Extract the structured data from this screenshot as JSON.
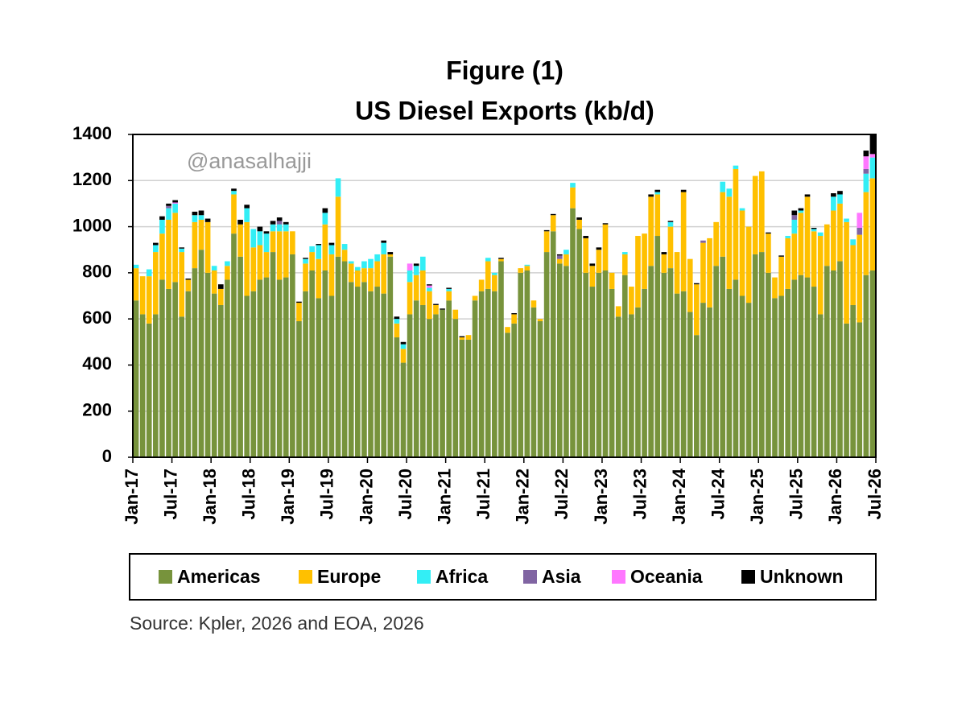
{
  "chart_data": {
    "type": "stacked_bar",
    "title": "Figure (1)",
    "subtitle": "US Diesel Exports (kb/d)",
    "watermark": "@anasalhajji",
    "source": "Source: Kpler, 2026 and EOA, 2026",
    "categories": [
      "Jan-17",
      null,
      null,
      null,
      null,
      null,
      "Jul-17",
      null,
      null,
      null,
      null,
      null,
      "Jan-18",
      null,
      null,
      null,
      null,
      null,
      "Jul-18",
      null,
      null,
      null,
      null,
      null,
      "Jan-19",
      null,
      null,
      null,
      null,
      null,
      "Jul-19",
      null,
      null,
      null,
      null,
      null,
      "Jan-20",
      null,
      null,
      null,
      null,
      null,
      "Jul-20",
      null,
      null,
      null,
      null,
      null,
      "Jan-21",
      null,
      null,
      null,
      null,
      null,
      "Jul-21",
      null,
      null,
      null,
      null,
      null,
      "Jan-22",
      null,
      null,
      null,
      null,
      null,
      "Jul-22",
      null,
      null,
      null,
      null,
      null,
      "Jan-23",
      null,
      null,
      null,
      null,
      null,
      "Jul-23",
      null,
      null,
      null,
      null,
      null,
      "Jan-24",
      null,
      null,
      null,
      null,
      null,
      "Jul-24",
      null,
      null,
      null,
      null,
      null,
      "Jan-25",
      null,
      null,
      null,
      null,
      null,
      "Jul-25",
      null,
      null,
      null,
      null,
      null,
      "Jan-26",
      null,
      null,
      null,
      null,
      null,
      "Jul-26"
    ],
    "series": [
      {
        "name": "Americas",
        "color": "#77933c",
        "values": [
          680,
          620,
          580,
          620,
          770,
          730,
          760,
          610,
          720,
          820,
          900,
          800,
          710,
          660,
          770,
          970,
          870,
          700,
          720,
          770,
          780,
          890,
          770,
          780,
          880,
          590,
          720,
          810,
          690,
          810,
          700,
          870,
          850,
          760,
          740,
          760,
          720,
          740,
          710,
          870,
          520,
          410,
          620,
          680,
          660,
          600,
          620,
          640,
          680,
          600,
          510,
          510,
          680,
          720,
          730,
          720,
          850,
          540,
          580,
          800,
          810,
          650,
          590,
          890,
          980,
          840,
          830,
          1080,
          990,
          800,
          740,
          800,
          810,
          730,
          610,
          790,
          620,
          650,
          730,
          830,
          960,
          800,
          820,
          710,
          720,
          630,
          530,
          670,
          650,
          830,
          870,
          730,
          770,
          700,
          670,
          880,
          890,
          800,
          690,
          700,
          730,
          770,
          790,
          780,
          740,
          620,
          830,
          810,
          850,
          580,
          660,
          585,
          790,
          810,
          null
        ]
      },
      {
        "name": "Europe",
        "color": "#ffc000",
        "values": [
          140,
          165,
          205,
          270,
          200,
          300,
          300,
          280,
          50,
          200,
          130,
          220,
          100,
          70,
          60,
          170,
          140,
          320,
          190,
          150,
          110,
          90,
          210,
          200,
          100,
          80,
          120,
          80,
          170,
          200,
          180,
          260,
          50,
          80,
          70,
          60,
          100,
          110,
          170,
          10,
          60,
          60,
          140,
          110,
          150,
          120,
          40,
          0,
          40,
          40,
          10,
          20,
          20,
          50,
          120,
          70,
          10,
          25,
          40,
          20,
          20,
          30,
          10,
          90,
          70,
          20,
          50,
          90,
          40,
          150,
          90,
          100,
          200,
          70,
          45,
          90,
          120,
          310,
          240,
          300,
          180,
          80,
          180,
          180,
          430,
          230,
          220,
          260,
          300,
          190,
          280,
          400,
          480,
          370,
          330,
          340,
          350,
          170,
          90,
          170,
          220,
          200,
          270,
          350,
          240,
          340,
          180,
          260,
          250,
          440,
          260,
          380,
          360,
          400,
          null
        ]
      },
      {
        "name": "Africa",
        "color": "#33eef5",
        "values": [
          15,
          0,
          30,
          30,
          60,
          50,
          40,
          15,
          0,
          30,
          20,
          0,
          20,
          0,
          20,
          15,
          0,
          60,
          80,
          60,
          80,
          30,
          30,
          30,
          0,
          0,
          20,
          25,
          60,
          50,
          40,
          80,
          25,
          10,
          15,
          30,
          40,
          30,
          50,
          0,
          20,
          20,
          50,
          40,
          60,
          15,
          0,
          0,
          10,
          0,
          0,
          0,
          0,
          0,
          15,
          10,
          0,
          0,
          0,
          0,
          5,
          0,
          0,
          0,
          0,
          0,
          20,
          20,
          0,
          0,
          0,
          0,
          0,
          0,
          0,
          10,
          0,
          0,
          0,
          0,
          10,
          0,
          20,
          0,
          0,
          0,
          0,
          0,
          0,
          0,
          45,
          35,
          15,
          10,
          0,
          0,
          0,
          0,
          0,
          0,
          10,
          60,
          10,
          0,
          10,
          15,
          0,
          60,
          40,
          15,
          25,
          0,
          80,
          90,
          null
        ]
      },
      {
        "name": "Asia",
        "color": "#8064a2",
        "values": [
          0,
          0,
          0,
          0,
          0,
          10,
          0,
          0,
          0,
          0,
          0,
          0,
          0,
          0,
          0,
          0,
          0,
          0,
          0,
          0,
          0,
          0,
          15,
          0,
          0,
          0,
          0,
          0,
          0,
          0,
          0,
          0,
          0,
          0,
          0,
          0,
          0,
          0,
          0,
          0,
          0,
          0,
          0,
          0,
          0,
          0,
          0,
          0,
          0,
          0,
          0,
          0,
          0,
          0,
          0,
          0,
          0,
          0,
          0,
          0,
          0,
          0,
          0,
          0,
          0,
          15,
          0,
          0,
          0,
          0,
          0,
          0,
          0,
          0,
          0,
          0,
          0,
          0,
          0,
          0,
          0,
          0,
          0,
          0,
          0,
          0,
          0,
          10,
          0,
          0,
          0,
          0,
          0,
          0,
          0,
          0,
          0,
          0,
          0,
          0,
          0,
          20,
          0,
          0,
          0,
          0,
          0,
          0,
          0,
          0,
          0,
          30,
          20,
          0,
          null
        ]
      },
      {
        "name": "Oceania",
        "color": "#ff77ff",
        "values": [
          0,
          0,
          0,
          0,
          0,
          0,
          5,
          0,
          0,
          0,
          0,
          0,
          0,
          0,
          0,
          0,
          0,
          0,
          0,
          0,
          0,
          0,
          0,
          0,
          0,
          0,
          0,
          0,
          0,
          0,
          0,
          0,
          0,
          0,
          0,
          0,
          0,
          0,
          0,
          0,
          0,
          0,
          30,
          0,
          0,
          10,
          0,
          0,
          0,
          0,
          0,
          0,
          0,
          0,
          0,
          0,
          0,
          0,
          0,
          0,
          0,
          0,
          0,
          0,
          0,
          0,
          0,
          0,
          0,
          0,
          0,
          0,
          0,
          0,
          0,
          0,
          0,
          0,
          0,
          0,
          0,
          0,
          0,
          0,
          0,
          0,
          0,
          0,
          0,
          0,
          0,
          0,
          0,
          0,
          0,
          0,
          0,
          0,
          0,
          0,
          0,
          0,
          0,
          0,
          0,
          0,
          0,
          0,
          0,
          0,
          0,
          65,
          55,
          15,
          null
        ]
      },
      {
        "name": "Unknown",
        "color": "#000000",
        "values": [
          0,
          0,
          0,
          10,
          15,
          10,
          10,
          5,
          5,
          15,
          20,
          15,
          0,
          20,
          0,
          10,
          20,
          15,
          0,
          20,
          10,
          15,
          15,
          10,
          0,
          5,
          5,
          0,
          5,
          20,
          10,
          0,
          0,
          0,
          0,
          0,
          0,
          0,
          10,
          10,
          10,
          10,
          0,
          10,
          0,
          5,
          5,
          5,
          5,
          0,
          5,
          0,
          0,
          0,
          0,
          0,
          5,
          0,
          5,
          0,
          0,
          0,
          0,
          5,
          5,
          5,
          0,
          0,
          10,
          10,
          10,
          10,
          5,
          0,
          0,
          0,
          0,
          0,
          0,
          10,
          10,
          10,
          5,
          0,
          10,
          0,
          5,
          0,
          0,
          0,
          0,
          0,
          0,
          0,
          0,
          0,
          0,
          5,
          0,
          5,
          0,
          20,
          10,
          10,
          5,
          0,
          0,
          15,
          15,
          0,
          0,
          0,
          25,
          85,
          null
        ]
      }
    ],
    "ylim": [
      0,
      1400
    ],
    "yticks": [
      0,
      200,
      400,
      600,
      800,
      1000,
      1200,
      1400
    ],
    "grid": true,
    "legend": "bottom"
  }
}
